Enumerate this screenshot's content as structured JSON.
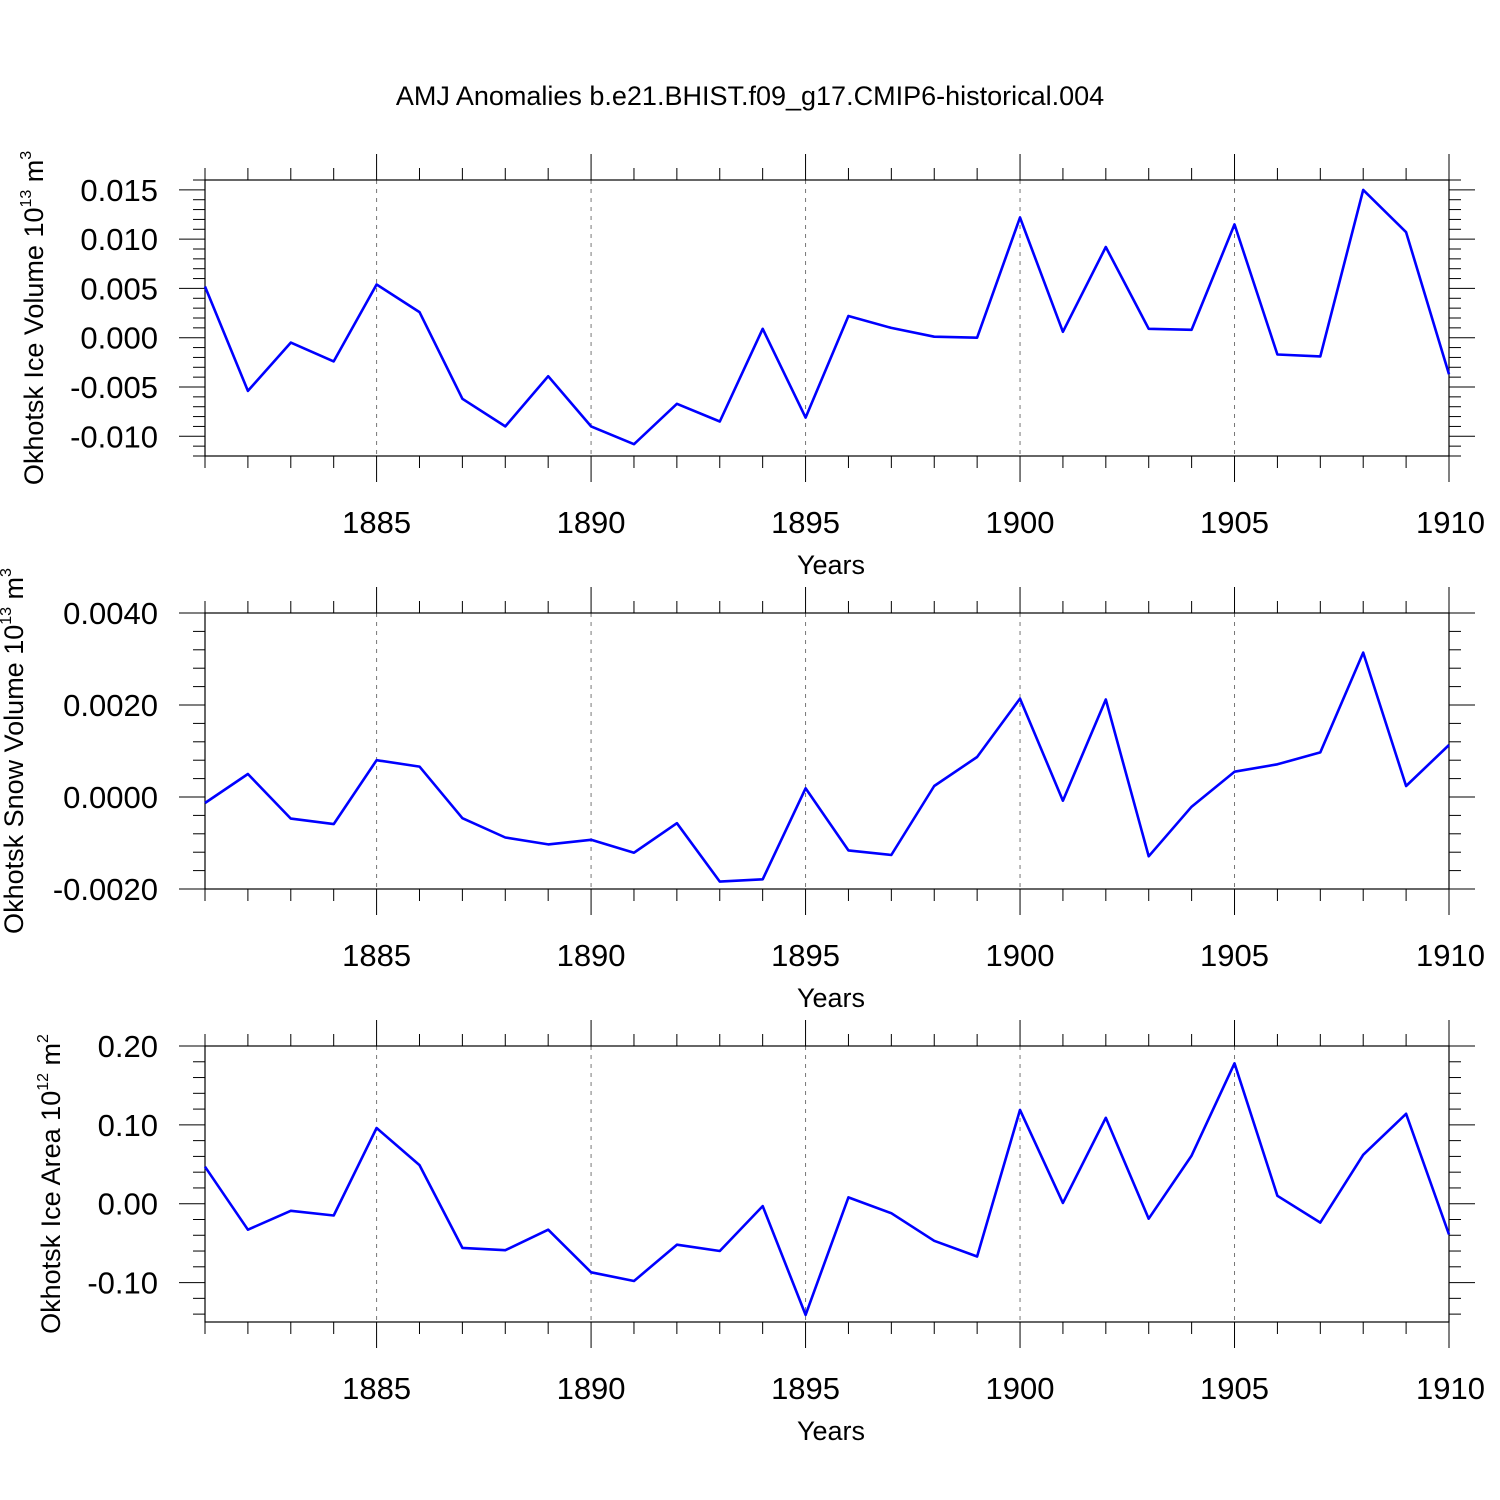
{
  "chart_data": {
    "title": "AMJ Anomalies b.e21.BHIST.f09_g17.CMIP6-historical.004",
    "panels": [
      {
        "type": "line",
        "ylabel": {
          "main": "Okhotsk Ice Volume 10",
          "exp1": "13",
          "unit": " m",
          "exp2": "3"
        },
        "xlabel": "Years",
        "xlim": [
          1881,
          1910
        ],
        "ylim": [
          -0.012,
          0.016
        ],
        "y_ticks": [
          -0.01,
          -0.005,
          0.0,
          0.005,
          0.01,
          0.015
        ],
        "y_tick_labels": [
          "-0.010",
          "-0.005",
          "0.000",
          "0.005",
          "0.010",
          "0.015"
        ],
        "x_ticks": [
          1885,
          1890,
          1895,
          1900,
          1905,
          1910
        ],
        "x_tick_labels": [
          "1885",
          "1890",
          "1895",
          "1900",
          "1905",
          "1910"
        ],
        "grid": "dashed vertical lines at major x ticks",
        "color": "#0000ff",
        "x": [
          1881,
          1882,
          1883,
          1884,
          1885,
          1886,
          1887,
          1888,
          1889,
          1890,
          1891,
          1892,
          1893,
          1894,
          1895,
          1896,
          1897,
          1898,
          1899,
          1900,
          1901,
          1902,
          1903,
          1904,
          1905,
          1906,
          1907,
          1908,
          1909,
          1910
        ],
        "values": [
          0.0052,
          -0.0054,
          -0.0005,
          -0.0024,
          0.0054,
          0.0026,
          -0.0062,
          -0.009,
          -0.0039,
          -0.009,
          -0.0108,
          -0.0067,
          -0.0085,
          0.0009,
          -0.0081,
          0.0022,
          0.001,
          0.0001,
          0.0,
          0.0122,
          0.0006,
          0.0092,
          0.0009,
          0.0008,
          0.0115,
          -0.0017,
          -0.0019,
          0.015,
          0.0107,
          -0.0037
        ]
      },
      {
        "type": "line",
        "ylabel": {
          "main": "Okhotsk Snow Volume 10",
          "exp1": "13",
          "unit": " m",
          "exp2": "3"
        },
        "xlabel": "Years",
        "xlim": [
          1881,
          1910
        ],
        "ylim": [
          -0.002,
          0.004
        ],
        "y_ticks": [
          -0.002,
          0.0,
          0.002,
          0.004
        ],
        "y_tick_labels": [
          "-0.0020",
          "0.0000",
          "0.0020",
          "0.0040"
        ],
        "x_ticks": [
          1885,
          1890,
          1895,
          1900,
          1905,
          1910
        ],
        "x_tick_labels": [
          "1885",
          "1890",
          "1895",
          "1900",
          "1905",
          "1910"
        ],
        "grid": "dashed vertical lines at major x ticks",
        "color": "#0000ff",
        "x": [
          1881,
          1882,
          1883,
          1884,
          1885,
          1886,
          1887,
          1888,
          1889,
          1890,
          1891,
          1892,
          1893,
          1894,
          1895,
          1896,
          1897,
          1898,
          1899,
          1900,
          1901,
          1902,
          1903,
          1904,
          1905,
          1906,
          1907,
          1908,
          1909,
          1910
        ],
        "values": [
          -0.00013,
          0.0005,
          -0.00047,
          -0.00059,
          0.0008,
          0.00066,
          -0.00046,
          -0.00088,
          -0.00103,
          -0.00093,
          -0.00121,
          -0.00057,
          -0.00184,
          -0.00179,
          0.00019,
          -0.00116,
          -0.00126,
          0.00024,
          0.00087,
          0.00214,
          -8e-05,
          0.00212,
          -0.00129,
          -0.00021,
          0.00055,
          0.00071,
          0.00097,
          0.00314,
          0.00024,
          0.00113
        ]
      },
      {
        "type": "line",
        "ylabel": {
          "main": "Okhotsk Ice Area 10",
          "exp1": "12",
          "unit": " m",
          "exp2": "2"
        },
        "xlabel": "Years",
        "xlim": [
          1881,
          1910
        ],
        "ylim": [
          -0.15,
          0.2
        ],
        "y_ticks": [
          -0.1,
          0.0,
          0.1,
          0.2
        ],
        "y_tick_labels": [
          "-0.10",
          "0.00",
          "0.10",
          "0.20"
        ],
        "x_ticks": [
          1885,
          1890,
          1895,
          1900,
          1905,
          1910
        ],
        "x_tick_labels": [
          "1885",
          "1890",
          "1895",
          "1900",
          "1905",
          "1910"
        ],
        "grid": "dashed vertical lines at major x ticks",
        "color": "#0000ff",
        "x": [
          1881,
          1882,
          1883,
          1884,
          1885,
          1886,
          1887,
          1888,
          1889,
          1890,
          1891,
          1892,
          1893,
          1894,
          1895,
          1896,
          1897,
          1898,
          1899,
          1900,
          1901,
          1902,
          1903,
          1904,
          1905,
          1906,
          1907,
          1908,
          1909,
          1910
        ],
        "values": [
          0.047,
          -0.033,
          -0.009,
          -0.015,
          0.096,
          0.049,
          -0.056,
          -0.059,
          -0.033,
          -0.087,
          -0.098,
          -0.052,
          -0.06,
          -0.003,
          -0.141,
          0.008,
          -0.012,
          -0.047,
          -0.067,
          0.119,
          0.001,
          0.109,
          -0.019,
          0.061,
          0.178,
          0.01,
          -0.024,
          0.062,
          0.114,
          -0.039
        ]
      }
    ]
  }
}
